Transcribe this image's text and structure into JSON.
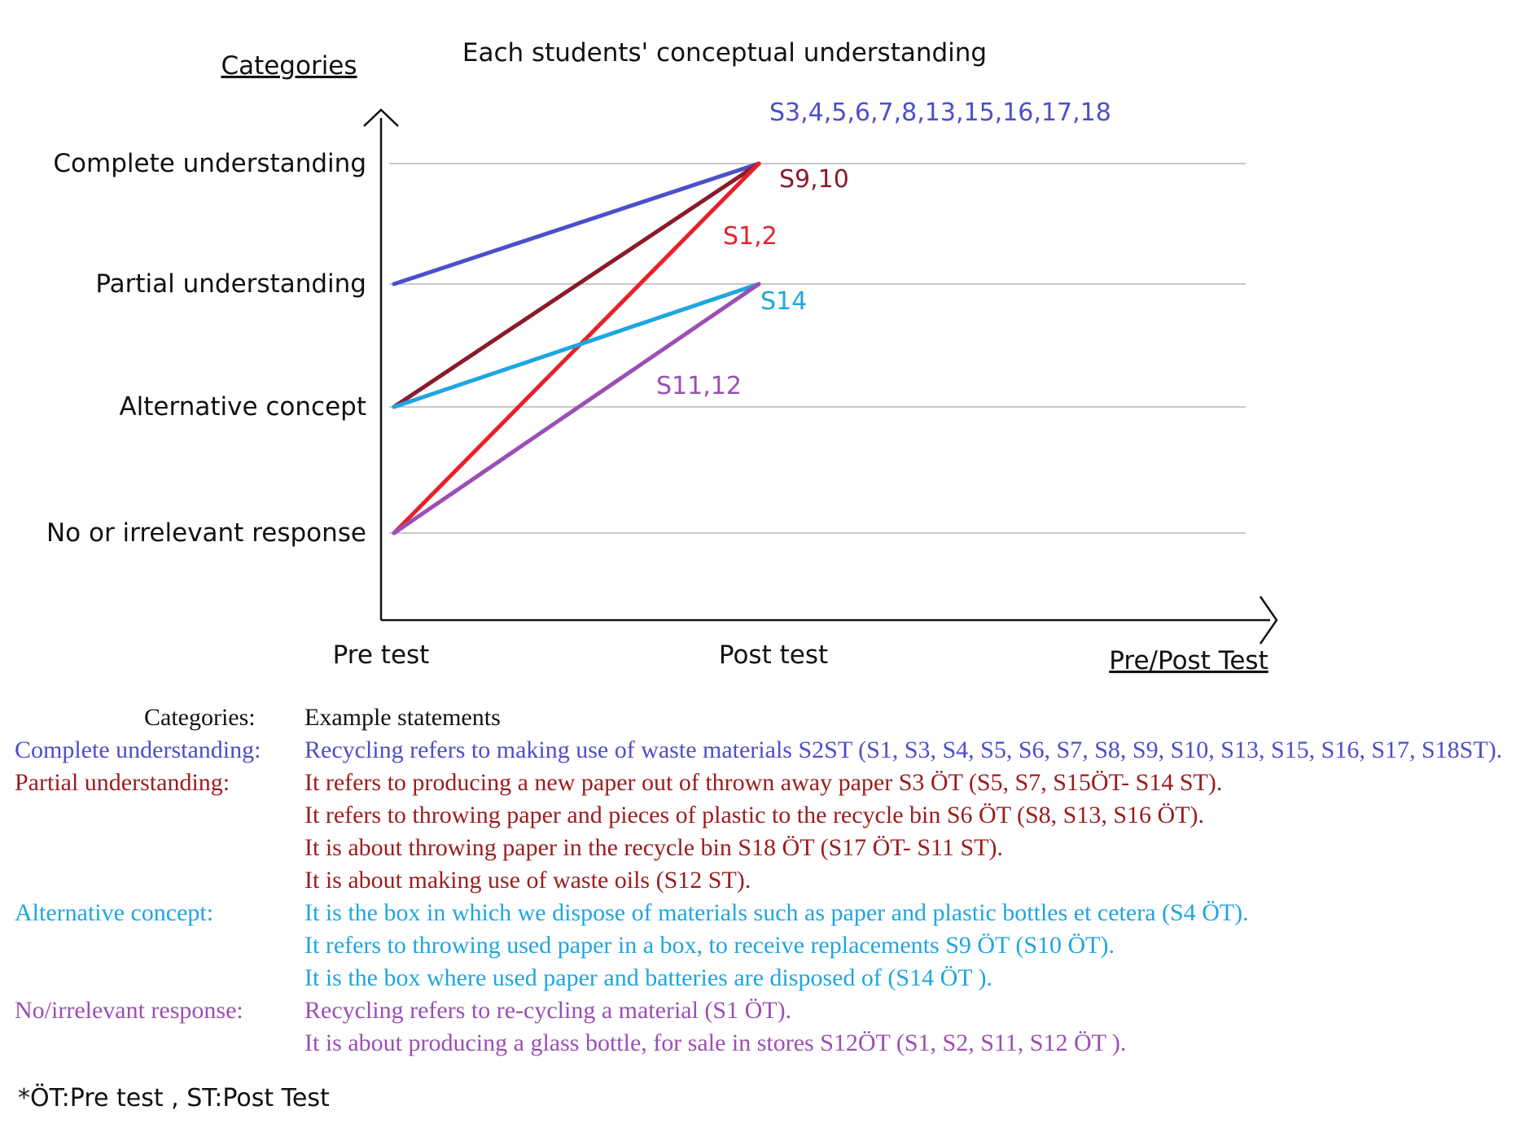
{
  "chart_data": {
    "type": "line",
    "title": "Each students' conceptual understanding",
    "ylabel": "Categories",
    "xlabel": "Pre/Post Test",
    "categories": [
      "Pre test",
      "Post test"
    ],
    "y_levels": [
      "No or irrelevant response",
      "Alternative concept",
      "Partial understanding",
      "Complete understanding"
    ],
    "ylim": [
      0,
      3
    ],
    "grid": true,
    "series": [
      {
        "name": "S3,4,5,6,7,8,13,15,16,17,18",
        "values": [
          2,
          3
        ],
        "color": "#4b4fc9"
      },
      {
        "name": "S9,10",
        "values": [
          1,
          3
        ],
        "color": "#8b1a2b"
      },
      {
        "name": "S1,2",
        "values": [
          0,
          3
        ],
        "color": "#e8202a"
      },
      {
        "name": "S14",
        "values": [
          1,
          2
        ],
        "color": "#1ea6e0"
      },
      {
        "name": "S11,12",
        "values": [
          0,
          2
        ],
        "color": "#9b4fb4"
      }
    ]
  },
  "legend": {
    "header": {
      "category": "Categories:",
      "statement": "Example statements"
    },
    "rows": [
      {
        "category": "Complete understanding:",
        "statement": "Recycling refers to making use of waste materials S2ST (S1, S3, S4, S5, S6, S7, S8, S9, S10, S13, S15, S16, S17, S18ST).",
        "color": "#4b4fc9"
      },
      {
        "category": "Partial understanding:",
        "statement": "It refers to producing a new paper out of thrown away paper S3 ÖT (S5, S7, S15ÖT- S14 ST).",
        "color": "#9b1c1c"
      },
      {
        "category": "",
        "statement": "It refers to throwing paper and pieces of plastic to the recycle bin S6 ÖT (S8, S13, S16 ÖT).",
        "color": "#9b1c1c"
      },
      {
        "category": "",
        "statement": "It is about throwing paper in the recycle bin S18 ÖT (S17 ÖT- S11 ST).",
        "color": "#9b1c1c"
      },
      {
        "category": "",
        "statement": "It is about making use of waste oils (S12 ST).",
        "color": "#9b1c1c"
      },
      {
        "category": "Alternative concept:",
        "statement": "It is the box in which we dispose of materials such as paper and plastic bottles et cetera (S4 ÖT).",
        "color": "#1ea6e0"
      },
      {
        "category": "",
        "statement": "It refers to throwing used paper in a box, to receive replacements S9 ÖT (S10 ÖT).",
        "color": "#1ea6e0"
      },
      {
        "category": "",
        "statement": "It is the box where used paper and batteries are disposed of (S14 ÖT ).",
        "color": "#1ea6e0"
      },
      {
        "category": "No/irrelevant response:",
        "statement": "Recycling refers to re-cycling a material (S1 ÖT).",
        "color": "#9b4fb4"
      },
      {
        "category": "",
        "statement": "It is about producing a glass bottle, for sale in stores S12ÖT (S1, S2, S11, S12 ÖT ).",
        "color": "#9b4fb4"
      }
    ]
  },
  "footnote": "*ÖT:Pre test ,   ST:Post Test"
}
